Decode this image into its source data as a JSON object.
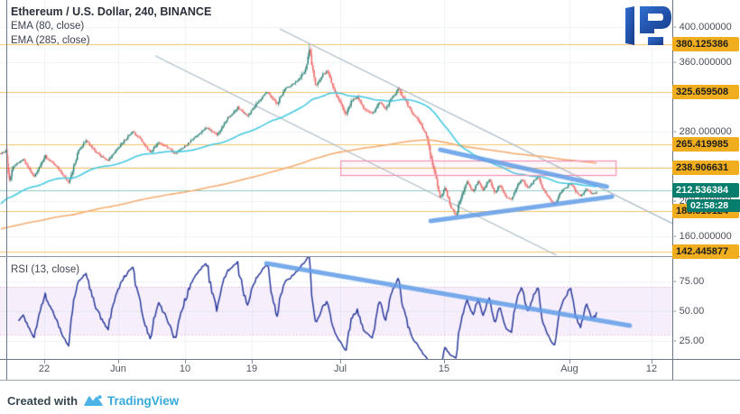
{
  "header": {
    "title": "Ethereum / U.S. Dollar, 240, BINANCE",
    "indicator_1": "EMA (80, close)",
    "indicator_2": "EMA (285, close)"
  },
  "rsi_pane": {
    "label": "RSI (13, close)",
    "ticks": [
      {
        "label": "75.00",
        "value": 75
      },
      {
        "label": "50.00",
        "value": 50
      },
      {
        "label": "25.00",
        "value": 25
      }
    ]
  },
  "footer": {
    "created_with": "Created with",
    "brand": "TradingView"
  },
  "price_axis": {
    "plain_ticks": [
      {
        "label": "400.000000",
        "price": 400
      },
      {
        "label": "360.000000",
        "price": 360
      },
      {
        "label": "320.000000",
        "price": 320
      },
      {
        "label": "280.000000",
        "price": 280
      },
      {
        "label": "200.000000",
        "price": 200
      },
      {
        "label": "160.000000",
        "price": 160
      }
    ],
    "level_badges": [
      {
        "label": "380.125386",
        "price": 380.125386
      },
      {
        "label": "325.659508",
        "price": 325.659508
      },
      {
        "label": "265.419985",
        "price": 265.419985
      },
      {
        "label": "238.906631",
        "price": 238.906631
      },
      {
        "label": "188.510124",
        "price": 188.510124
      },
      {
        "label": "142.445877",
        "price": 142.445877
      }
    ],
    "last_price_label": "212.536384",
    "last_price": 212.536384,
    "countdown": "02:58:28"
  },
  "chart_data": {
    "type": "candlestick",
    "symbol": "Ethereum / U.S. Dollar",
    "exchange": "BINANCE",
    "interval_minutes": 240,
    "indicators": [
      "EMA(80)",
      "EMA(285)",
      "RSI(13)"
    ],
    "x_axis": {
      "ticks": [
        {
          "label": "22",
          "day": 6
        },
        {
          "label": "Jun",
          "day": 16
        },
        {
          "label": "10",
          "day": 25
        },
        {
          "label": "19",
          "day": 34
        },
        {
          "label": "Jul",
          "day": 46
        },
        {
          "label": "15",
          "day": 60
        },
        {
          "label": "Aug",
          "day": 77
        },
        {
          "label": "12",
          "day": 88
        }
      ]
    },
    "y_axis": {
      "grid_prices": [
        400,
        360,
        320,
        280,
        240,
        200,
        160
      ],
      "visible_range": [
        138,
        431
      ],
      "grid": true
    },
    "rsi_axis": {
      "ticks": [
        75,
        50,
        25
      ],
      "band": [
        30,
        70
      ]
    },
    "levels": [
      380.125386,
      325.659508,
      265.419985,
      238.906631,
      188.510124,
      142.445877
    ],
    "last_price": 212.536384,
    "price_keyframes": [
      [
        0,
        255
      ],
      [
        0.7,
        258
      ],
      [
        1.1,
        218
      ],
      [
        1.6,
        240
      ],
      [
        3,
        248
      ],
      [
        4.5,
        228
      ],
      [
        6,
        252
      ],
      [
        7.5,
        240
      ],
      [
        9.2,
        222
      ],
      [
        10.5,
        258
      ],
      [
        11.5,
        270
      ],
      [
        13,
        255
      ],
      [
        14.5,
        247
      ],
      [
        16.5,
        268
      ],
      [
        17.8,
        280
      ],
      [
        19,
        270
      ],
      [
        20.2,
        256
      ],
      [
        21.3,
        268
      ],
      [
        22.5,
        262
      ],
      [
        23.5,
        255
      ],
      [
        25,
        264
      ],
      [
        26.3,
        274
      ],
      [
        27.8,
        285
      ],
      [
        29.2,
        276
      ],
      [
        30.7,
        296
      ],
      [
        32,
        308
      ],
      [
        33.3,
        298
      ],
      [
        34.8,
        315
      ],
      [
        36,
        326
      ],
      [
        37.3,
        312
      ],
      [
        38.5,
        330
      ],
      [
        40,
        338
      ],
      [
        41.2,
        352
      ],
      [
        41.7,
        378
      ],
      [
        42,
        355
      ],
      [
        42.5,
        332
      ],
      [
        43.4,
        344
      ],
      [
        44.1,
        350
      ],
      [
        45,
        328
      ],
      [
        45.8,
        315
      ],
      [
        46.6,
        298
      ],
      [
        47.4,
        316
      ],
      [
        48.2,
        320
      ],
      [
        49.2,
        305
      ],
      [
        50.2,
        300
      ],
      [
        51.2,
        314
      ],
      [
        52,
        306
      ],
      [
        52.8,
        318
      ],
      [
        53.7,
        329
      ],
      [
        54.6,
        316
      ],
      [
        55.6,
        302
      ],
      [
        56.6,
        290
      ],
      [
        57.4,
        278
      ],
      [
        58.2,
        248
      ],
      [
        58.8,
        225
      ],
      [
        59.4,
        204
      ],
      [
        60,
        216
      ],
      [
        60.8,
        194
      ],
      [
        61.5,
        184
      ],
      [
        62.2,
        206
      ],
      [
        63,
        222
      ],
      [
        63.8,
        212
      ],
      [
        64.5,
        223
      ],
      [
        65.2,
        213
      ],
      [
        66,
        225
      ],
      [
        66.7,
        209
      ],
      [
        67.4,
        219
      ],
      [
        68.2,
        206
      ],
      [
        69,
        202
      ],
      [
        69.7,
        217
      ],
      [
        70.4,
        225
      ],
      [
        71.2,
        215
      ],
      [
        72,
        223
      ],
      [
        72.6,
        228
      ],
      [
        73.3,
        213
      ],
      [
        74,
        205
      ],
      [
        74.8,
        196
      ],
      [
        75.5,
        209
      ],
      [
        76.2,
        215
      ],
      [
        77,
        221
      ],
      [
        77.7,
        211
      ],
      [
        78.4,
        206
      ],
      [
        79.1,
        215
      ],
      [
        79.8,
        208
      ],
      [
        80.4,
        210
      ],
      [
        80.7,
        212.54
      ]
    ],
    "drawings": {
      "triangle_upper": {
        "from": [
          59.5,
          259.3
        ],
        "to": [
          82.0,
          217.0
        ]
      },
      "triangle_lower": {
        "from": [
          58.2,
          177.6
        ],
        "to": [
          82.7,
          205.6
        ]
      },
      "channel_line_a": {
        "from": [
          21.0,
          366.9
        ],
        "to": [
          75.2,
          138.3
        ]
      },
      "channel_line_b": {
        "from": [
          37.8,
          397.9
        ],
        "to": [
          90.9,
          174.5
        ]
      },
      "resistance_box": {
        "day_from": 46.0,
        "day_to": 83.2,
        "price_from": 230.3,
        "price_to": 246.9
      },
      "rsi_trendline": {
        "from": [
          36.0,
          89.8
        ],
        "to": [
          85.1,
          37.5
        ]
      }
    }
  },
  "colors": {
    "up": "#1f7a6d",
    "down": "#ee5c5c",
    "ema_fast": "#45c9e0",
    "ema_slow": "#f5ad72",
    "level_line": "#f5c469",
    "level_badge": "#f0ae1f",
    "last_badge": "#077d6e",
    "last_line": "#6db8ae",
    "trend_blue": "#609ce8",
    "channel_gray": "#a9bac6",
    "rsi_line": "#2b3a9b",
    "band_line": "#d98cc8",
    "box_pink": "#f291b2",
    "grid": "#eef1f6",
    "brand_blue": "#3fb0e0"
  }
}
